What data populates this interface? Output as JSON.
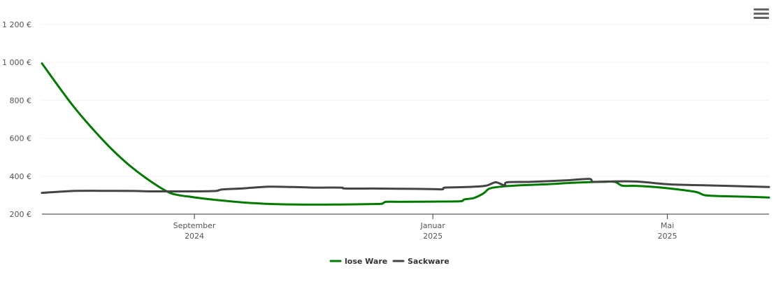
{
  "chart_data": {
    "type": "line",
    "title": "",
    "xlabel": "",
    "ylabel": "",
    "ylim": [
      200,
      1200
    ],
    "xlim": [
      "2024-06-15",
      "2025-06-22"
    ],
    "y_ticks": [
      {
        "value": 200,
        "label": "200 €"
      },
      {
        "value": 400,
        "label": "400 €"
      },
      {
        "value": 600,
        "label": "600 €"
      },
      {
        "value": 800,
        "label": "800 €"
      },
      {
        "value": 1000,
        "label": "1 000 €"
      },
      {
        "value": 1200,
        "label": "1 200 €"
      }
    ],
    "x_ticks": [
      {
        "date": "2024-09-01",
        "line1": "September",
        "line2": "2024"
      },
      {
        "date": "2025-01-01",
        "line1": "Januar",
        "line2": "2025"
      },
      {
        "date": "2025-05-01",
        "line1": "Mai",
        "line2": "2025"
      }
    ],
    "grid": true,
    "legend_position": "bottom-center",
    "series": [
      {
        "name": "lose Ware",
        "color": "#007a00",
        "points": [
          [
            "2024-06-15",
            995
          ],
          [
            "2024-06-23",
            880
          ],
          [
            "2024-07-01",
            770
          ],
          [
            "2024-07-10",
            660
          ],
          [
            "2024-07-20",
            550
          ],
          [
            "2024-07-30",
            455
          ],
          [
            "2024-08-10",
            370
          ],
          [
            "2024-08-20",
            310
          ],
          [
            "2024-08-31",
            290
          ],
          [
            "2024-09-15",
            272
          ],
          [
            "2024-10-01",
            258
          ],
          [
            "2024-10-15",
            252
          ],
          [
            "2024-11-01",
            250
          ],
          [
            "2024-11-15",
            251
          ],
          [
            "2024-12-01",
            253
          ],
          [
            "2024-12-06",
            255
          ],
          [
            "2024-12-08",
            265
          ],
          [
            "2024-12-15",
            265
          ],
          [
            "2025-01-01",
            266
          ],
          [
            "2025-01-15",
            268
          ],
          [
            "2025-01-17",
            277
          ],
          [
            "2025-01-22",
            285
          ],
          [
            "2025-01-27",
            310
          ],
          [
            "2025-01-30",
            335
          ],
          [
            "2025-02-05",
            345
          ],
          [
            "2025-02-15",
            352
          ],
          [
            "2025-03-01",
            358
          ],
          [
            "2025-03-15",
            366
          ],
          [
            "2025-03-28",
            370
          ],
          [
            "2025-04-04",
            370
          ],
          [
            "2025-04-08",
            350
          ],
          [
            "2025-04-15",
            349
          ],
          [
            "2025-04-28",
            340
          ],
          [
            "2025-05-15",
            318
          ],
          [
            "2025-05-20",
            300
          ],
          [
            "2025-05-28",
            295
          ],
          [
            "2025-06-10",
            292
          ],
          [
            "2025-06-22",
            288
          ]
        ]
      },
      {
        "name": "Sackware",
        "color": "#444444",
        "points": [
          [
            "2024-06-15",
            312
          ],
          [
            "2024-07-01",
            322
          ],
          [
            "2024-07-15",
            323
          ],
          [
            "2024-08-01",
            322
          ],
          [
            "2024-08-10",
            320
          ],
          [
            "2024-08-20",
            320
          ],
          [
            "2024-09-01",
            320
          ],
          [
            "2024-09-12",
            322
          ],
          [
            "2024-09-15",
            330
          ],
          [
            "2024-09-25",
            335
          ],
          [
            "2024-10-01",
            340
          ],
          [
            "2024-10-10",
            345
          ],
          [
            "2024-10-25",
            342
          ],
          [
            "2024-11-01",
            340
          ],
          [
            "2024-11-15",
            340
          ],
          [
            "2024-11-17",
            335
          ],
          [
            "2024-12-01",
            335
          ],
          [
            "2024-12-15",
            334
          ],
          [
            "2025-01-01",
            332
          ],
          [
            "2025-01-06",
            331
          ],
          [
            "2025-01-07",
            340
          ],
          [
            "2025-01-15",
            342
          ],
          [
            "2025-01-25",
            346
          ],
          [
            "2025-01-29",
            352
          ],
          [
            "2025-02-02",
            368
          ],
          [
            "2025-02-05",
            358
          ],
          [
            "2025-02-07",
            350
          ],
          [
            "2025-02-08",
            368
          ],
          [
            "2025-02-20",
            370
          ],
          [
            "2025-03-10",
            378
          ],
          [
            "2025-03-22",
            386
          ],
          [
            "2025-03-24",
            371
          ],
          [
            "2025-04-01",
            372
          ],
          [
            "2025-04-15",
            372
          ],
          [
            "2025-05-01",
            358
          ],
          [
            "2025-05-15",
            353
          ],
          [
            "2025-06-01",
            349
          ],
          [
            "2025-06-22",
            343
          ]
        ]
      }
    ]
  },
  "toolbar": {
    "menu_icon": "hamburger-menu-icon"
  }
}
